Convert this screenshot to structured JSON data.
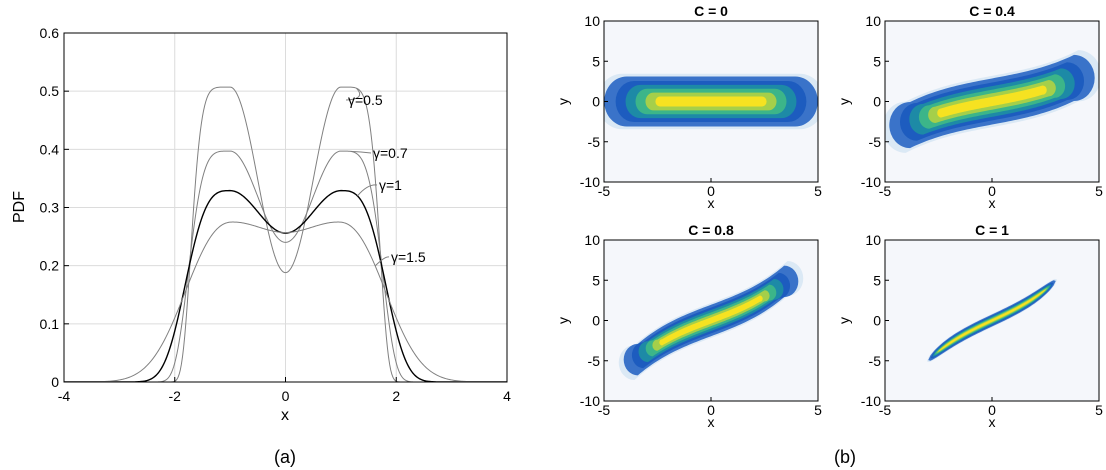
{
  "captions": {
    "a": "(a)",
    "b": "(b)"
  },
  "chart_data": [
    {
      "type": "line",
      "xlabel": "x",
      "ylabel": "PDF",
      "xlim": [
        -4,
        4
      ],
      "ylim": [
        0,
        0.6
      ],
      "xticks": [
        -4,
        -2,
        0,
        2,
        4
      ],
      "yticks": [
        0,
        0.1,
        0.2,
        0.3,
        0.4,
        0.5,
        0.6
      ],
      "grid": true,
      "series": [
        {
          "name": "γ=0.5",
          "color": "#808080",
          "gamma": 0.5,
          "peak_x": 1.0,
          "peak_y": 0.507,
          "center_y": 0.188
        },
        {
          "name": "γ=0.7",
          "color": "#808080",
          "gamma": 0.7,
          "peak_x": 1.0,
          "peak_y": 0.397,
          "center_y": 0.24
        },
        {
          "name": "γ=1",
          "color": "#000000",
          "gamma": 1,
          "peak_x": 1.0,
          "peak_y": 0.329,
          "center_y": 0.256
        },
        {
          "name": "γ=1.5",
          "color": "#808080",
          "gamma": 1.5,
          "peak_x": 0.95,
          "peak_y": 0.275,
          "center_y": 0.257
        }
      ]
    },
    {
      "type": "heatmap",
      "panels": [
        {
          "title": "C = 0",
          "C": 0
        },
        {
          "title": "C = 0.4",
          "C": 0.4
        },
        {
          "title": "C = 0.8",
          "C": 0.8
        },
        {
          "title": "C = 1",
          "C": 1
        }
      ],
      "xlabel": "x",
      "ylabel": "y",
      "xlim": [
        -5,
        5
      ],
      "ylim": [
        -10,
        10
      ],
      "xticks": [
        -5,
        0,
        5
      ],
      "yticks": [
        -10,
        -5,
        0,
        5,
        10
      ],
      "background": "#f5f7fb",
      "colormap": [
        "#f5f7fb",
        "#bcd6ee",
        "#3a73c9",
        "#1d5cbf",
        "#1d8aa6",
        "#3cb589",
        "#a5cf4a",
        "#f6e221"
      ]
    }
  ]
}
